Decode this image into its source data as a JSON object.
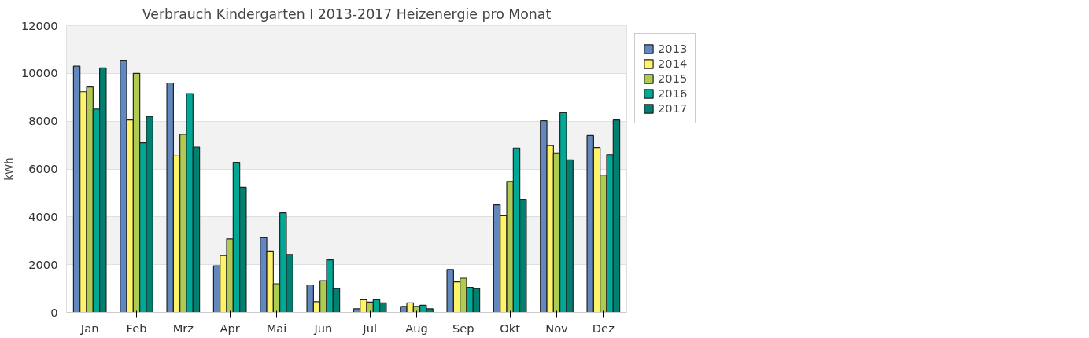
{
  "chart_data": {
    "type": "bar",
    "title": "Verbrauch Kindergarten I 2013-2017 Heizenergie pro Monat",
    "ylabel": "kWh",
    "categories": [
      "Jan",
      "Feb",
      "Mrz",
      "Apr",
      "Mai",
      "Jun",
      "Jul",
      "Aug",
      "Sep",
      "Okt",
      "Nov",
      "Dez"
    ],
    "series": [
      {
        "name": "2013",
        "color": "#6288c0",
        "values": [
          10300,
          10550,
          9600,
          1950,
          3130,
          1150,
          150,
          250,
          1800,
          4500,
          8020,
          7400
        ]
      },
      {
        "name": "2014",
        "color": "#fff36a",
        "values": [
          9230,
          8050,
          6550,
          2380,
          2570,
          450,
          530,
          400,
          1280,
          4050,
          6980,
          6900
        ]
      },
      {
        "name": "2015",
        "color": "#b0cb52",
        "values": [
          9430,
          10000,
          7450,
          3080,
          1200,
          1330,
          430,
          250,
          1430,
          5480,
          6650,
          5750
        ]
      },
      {
        "name": "2016",
        "color": "#00a896",
        "values": [
          8500,
          7100,
          9150,
          6280,
          4170,
          2200,
          530,
          300,
          1050,
          6880,
          8350,
          6600
        ]
      },
      {
        "name": "2017",
        "color": "#008070",
        "values": [
          10230,
          8200,
          6920,
          5230,
          2420,
          1000,
          400,
          150,
          1000,
          4730,
          6380,
          8050
        ]
      }
    ],
    "ylim": [
      0,
      12000
    ],
    "yticks": [
      0,
      2000,
      4000,
      6000,
      8000,
      10000,
      12000
    ],
    "grid": "y",
    "legend": "top right"
  }
}
